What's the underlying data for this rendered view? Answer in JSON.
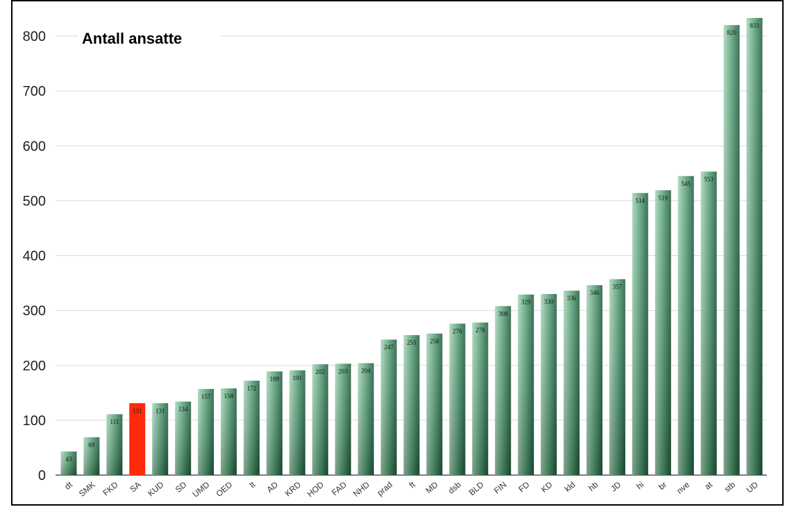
{
  "chart_data": {
    "type": "bar",
    "title": "Antall ansatte",
    "xlabel": "",
    "ylabel": "",
    "ylim": [
      0,
      830
    ],
    "yticks": [
      0,
      100,
      200,
      300,
      400,
      500,
      600,
      700,
      800
    ],
    "grid": true,
    "categories": [
      "dt",
      "SMK",
      "FKD",
      "SA",
      "KUD",
      "SD",
      "UMD",
      "OED",
      "lt",
      "AD",
      "KRD",
      "HOD",
      "FAD",
      "NHD",
      "prad",
      "ft",
      "MD",
      "dsb",
      "BLD",
      "FIN",
      "FD",
      "KD",
      "kld",
      "hb",
      "JD",
      "hi",
      "br",
      "nve",
      "at",
      "stb",
      "UD"
    ],
    "values": [
      43,
      69,
      111,
      131,
      131,
      134,
      157,
      158,
      172,
      189,
      191,
      202,
      203,
      204,
      247,
      255,
      258,
      276,
      278,
      308,
      329,
      330,
      336,
      346,
      357,
      514,
      519,
      545,
      553,
      820,
      833
    ],
    "highlight_index": 3,
    "colors": {
      "bar": "#2f7a55",
      "bar_light": "#8fc9a6",
      "highlight": "#ff2a0a"
    }
  }
}
